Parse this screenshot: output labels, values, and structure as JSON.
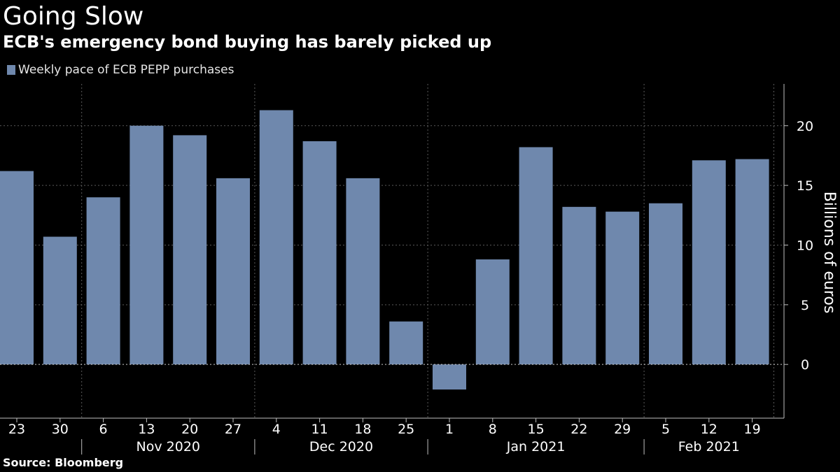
{
  "title": "Going Slow",
  "subtitle": "ECB's emergency bond buying has barely picked up",
  "source": "Source:  Bloomberg",
  "colors": {
    "bar": "#6f88ad",
    "grid": "#5a5a5a",
    "axis": "#bfbfbf",
    "background": "#000000"
  },
  "chart_data": {
    "type": "bar",
    "legend": "Weekly pace of ECB PEPP purchases",
    "legend_position": "top-left",
    "categories": [
      "23",
      "30",
      "6",
      "13",
      "20",
      "27",
      "4",
      "11",
      "18",
      "25",
      "1",
      "8",
      "15",
      "22",
      "29",
      "5",
      "12",
      "19"
    ],
    "dates": [
      "2020-10-23",
      "2020-10-30",
      "2020-11-06",
      "2020-11-13",
      "2020-11-20",
      "2020-11-27",
      "2020-12-04",
      "2020-12-11",
      "2020-12-18",
      "2020-12-25",
      "2021-01-01",
      "2021-01-08",
      "2021-01-15",
      "2021-01-22",
      "2021-01-29",
      "2021-02-05",
      "2021-02-12",
      "2021-02-19"
    ],
    "series": [
      {
        "name": "Weekly pace of ECB PEPP purchases",
        "values": [
          16.2,
          10.7,
          14.0,
          20.0,
          19.2,
          15.6,
          21.3,
          18.7,
          15.6,
          3.6,
          -2.1,
          8.8,
          18.2,
          13.2,
          12.8,
          13.5,
          17.1,
          17.2
        ]
      }
    ],
    "month_labels": [
      {
        "label": "Nov 2020",
        "first_index": 2,
        "last_index": 5
      },
      {
        "label": "Dec 2020",
        "first_index": 6,
        "last_index": 9
      },
      {
        "label": "Jan 2021",
        "first_index": 10,
        "last_index": 14
      },
      {
        "label": "Feb 2021",
        "first_index": 15,
        "last_index": 17
      }
    ],
    "ylabel": "Billions of euros",
    "ylabel_position": "right",
    "yticks": [
      0,
      5,
      10,
      15,
      20
    ],
    "ylim": [
      -4.5,
      23.5
    ],
    "grid": true
  }
}
